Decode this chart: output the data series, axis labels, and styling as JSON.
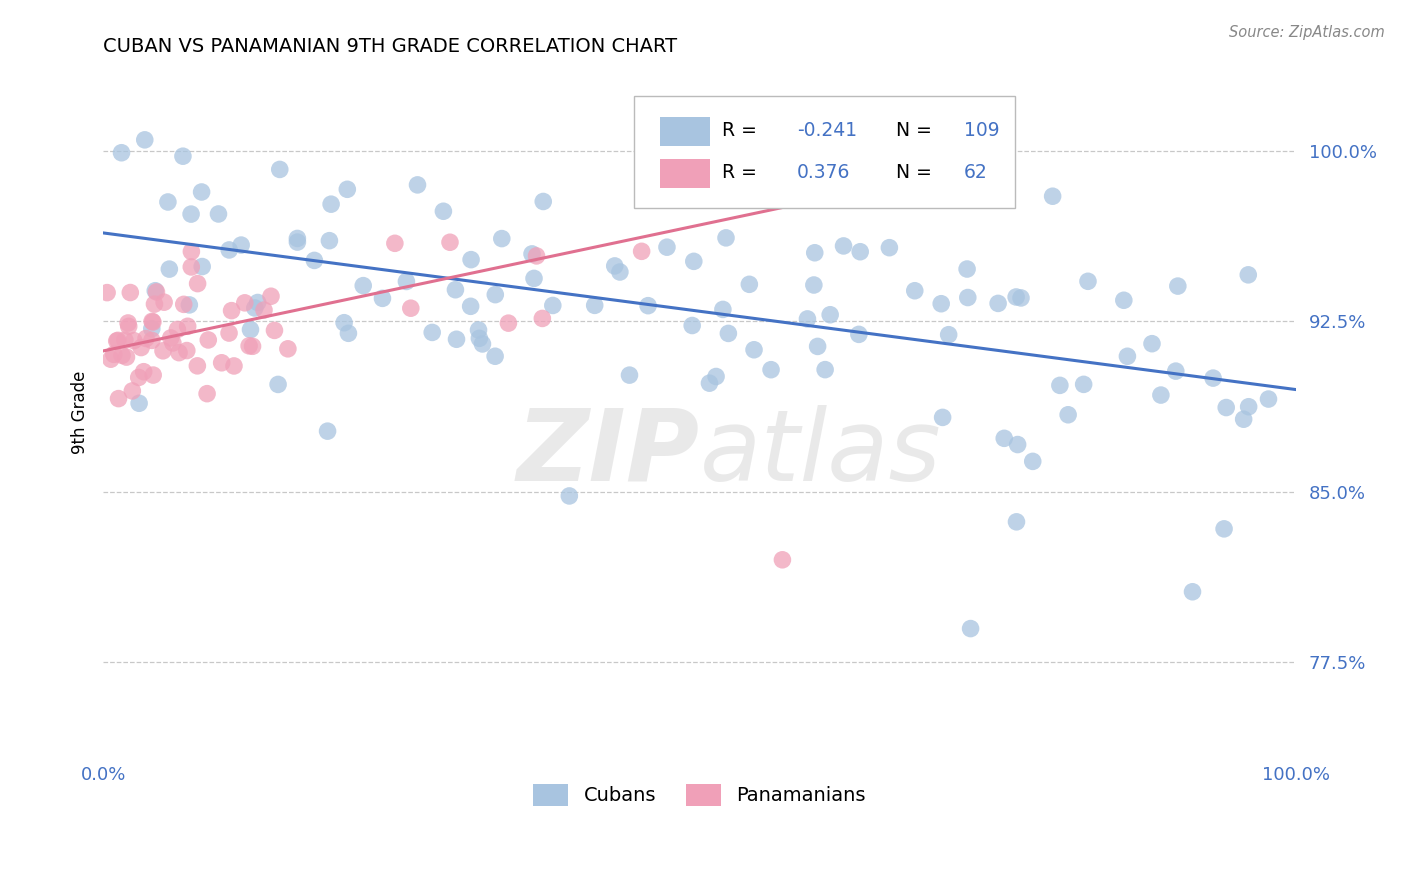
{
  "title": "CUBAN VS PANAMANIAN 9TH GRADE CORRELATION CHART",
  "source_text": "Source: ZipAtlas.com",
  "ylabel": "9th Grade",
  "ytick_labels": [
    "100.0%",
    "92.5%",
    "85.0%",
    "77.5%"
  ],
  "ytick_values": [
    1.0,
    0.925,
    0.85,
    0.775
  ],
  "xmin": 0.0,
  "xmax": 1.0,
  "ymin": 0.735,
  "ymax": 1.035,
  "legend_r_blue": "-0.241",
  "legend_n_blue": "109",
  "legend_r_pink": "0.376",
  "legend_n_pink": "62",
  "blue_color": "#a8c4e0",
  "pink_color": "#f0a0b8",
  "line_blue": "#4472c4",
  "line_pink": "#e07090",
  "text_blue": "#4472c4",
  "grid_color": "#c8c8c8",
  "blue_line_x": [
    0.0,
    1.0
  ],
  "blue_line_y": [
    0.964,
    0.895
  ],
  "pink_line_x": [
    0.0,
    0.685
  ],
  "pink_line_y": [
    0.912,
    0.988
  ]
}
